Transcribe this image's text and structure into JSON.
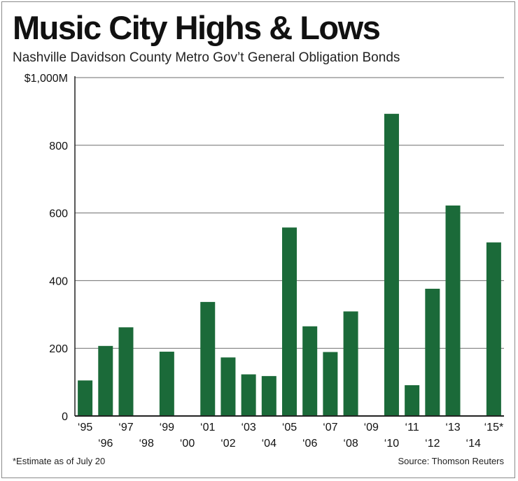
{
  "title": "Music City Highs & Lows",
  "subtitle": "Nashville Davidson County Metro Gov’t General Obligation Bonds",
  "footnote": "*Estimate as of July 20",
  "source": "Source: Thomson Reuters",
  "colors": {
    "bar": "#1b6a39",
    "grid": "#6e6e6e",
    "axis": "#222222"
  },
  "chart_data": {
    "type": "bar",
    "categories": [
      "‘95",
      "‘96",
      "‘97",
      "‘98",
      "‘99",
      "‘00",
      "‘01",
      "‘02",
      "‘03",
      "‘04",
      "‘05",
      "‘06",
      "‘07",
      "‘08",
      "‘09",
      "‘10",
      "‘11",
      "‘12",
      "‘13",
      "‘14",
      "‘15*"
    ],
    "values": [
      105,
      207,
      262,
      0,
      190,
      0,
      337,
      173,
      123,
      118,
      557,
      265,
      189,
      309,
      0,
      893,
      91,
      376,
      622,
      0,
      513
    ],
    "ylim": [
      0,
      1000
    ],
    "yticks": [
      0,
      200,
      400,
      600,
      800,
      1000
    ],
    "ytick_labels": [
      "0",
      "200",
      "400",
      "600",
      "800",
      "$1,000M"
    ],
    "grid": true,
    "xlabel": "",
    "ylabel": ""
  }
}
